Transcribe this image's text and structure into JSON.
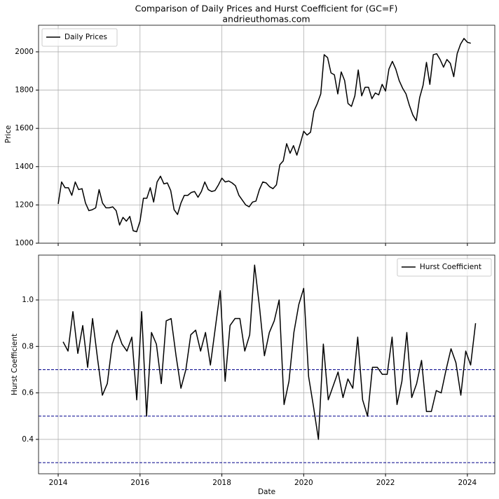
{
  "title": "Comparison of Daily Prices and Hurst Coefficient for (GC=F)",
  "subtitle": "andrieuthomas.com",
  "chart_data": [
    {
      "type": "line",
      "ylabel": "Price",
      "legend": "upper left",
      "grid": true,
      "xlim": [
        2013.52,
        2024.67
      ],
      "xticks": [
        2014,
        2016,
        2018,
        2020,
        2022,
        2024
      ],
      "ylim": [
        1000,
        2139
      ],
      "yticks": [
        1000,
        1200,
        1400,
        1600,
        1800,
        2000
      ],
      "x": [
        2014.0,
        2014.083,
        2014.167,
        2014.25,
        2014.333,
        2014.417,
        2014.5,
        2014.583,
        2014.667,
        2014.75,
        2014.833,
        2014.917,
        2015.0,
        2015.083,
        2015.167,
        2015.25,
        2015.333,
        2015.417,
        2015.5,
        2015.583,
        2015.667,
        2015.75,
        2015.833,
        2015.917,
        2016.0,
        2016.083,
        2016.167,
        2016.25,
        2016.333,
        2016.417,
        2016.5,
        2016.583,
        2016.667,
        2016.75,
        2016.833,
        2016.917,
        2017.0,
        2017.083,
        2017.167,
        2017.25,
        2017.333,
        2017.417,
        2017.5,
        2017.583,
        2017.667,
        2017.75,
        2017.833,
        2017.917,
        2018.0,
        2018.083,
        2018.167,
        2018.25,
        2018.333,
        2018.417,
        2018.5,
        2018.583,
        2018.667,
        2018.75,
        2018.833,
        2018.917,
        2019.0,
        2019.083,
        2019.167,
        2019.25,
        2019.333,
        2019.417,
        2019.5,
        2019.583,
        2019.667,
        2019.75,
        2019.833,
        2019.917,
        2020.0,
        2020.083,
        2020.167,
        2020.25,
        2020.333,
        2020.417,
        2020.5,
        2020.583,
        2020.667,
        2020.75,
        2020.833,
        2020.917,
        2021.0,
        2021.083,
        2021.167,
        2021.25,
        2021.333,
        2021.417,
        2021.5,
        2021.583,
        2021.667,
        2021.75,
        2021.833,
        2021.917,
        2022.0,
        2022.083,
        2022.167,
        2022.25,
        2022.333,
        2022.417,
        2022.5,
        2022.583,
        2022.667,
        2022.75,
        2022.833,
        2022.917,
        2023.0,
        2023.083,
        2023.167,
        2023.25,
        2023.333,
        2023.417,
        2023.5,
        2023.583,
        2023.667,
        2023.75,
        2023.833,
        2023.917,
        2024.0,
        2024.083
      ],
      "series": [
        {
          "name": "Daily Prices",
          "color": "#000000",
          "values": [
            1205,
            1320,
            1290,
            1290,
            1250,
            1320,
            1280,
            1285,
            1210,
            1170,
            1175,
            1185,
            1280,
            1210,
            1185,
            1185,
            1190,
            1170,
            1095,
            1135,
            1115,
            1140,
            1065,
            1060,
            1115,
            1235,
            1235,
            1290,
            1215,
            1320,
            1350,
            1310,
            1315,
            1275,
            1175,
            1150,
            1210,
            1250,
            1250,
            1265,
            1270,
            1240,
            1270,
            1320,
            1280,
            1270,
            1275,
            1305,
            1340,
            1320,
            1325,
            1315,
            1300,
            1250,
            1225,
            1200,
            1190,
            1215,
            1220,
            1280,
            1320,
            1315,
            1295,
            1285,
            1305,
            1410,
            1430,
            1520,
            1470,
            1510,
            1460,
            1520,
            1585,
            1565,
            1580,
            1690,
            1730,
            1780,
            1985,
            1970,
            1890,
            1880,
            1780,
            1895,
            1850,
            1730,
            1715,
            1770,
            1905,
            1770,
            1815,
            1815,
            1755,
            1785,
            1775,
            1830,
            1795,
            1910,
            1950,
            1910,
            1850,
            1810,
            1780,
            1720,
            1670,
            1640,
            1760,
            1825,
            1945,
            1830,
            1985,
            1990,
            1960,
            1920,
            1960,
            1940,
            1870,
            1990,
            2040,
            2070,
            2050,
            2045
          ]
        }
      ]
    },
    {
      "type": "line",
      "xlabel": "Date",
      "ylabel": "Hurst Coefficient",
      "legend": "upper right",
      "grid": true,
      "xlim": [
        2013.52,
        2024.67
      ],
      "xticks": [
        2014,
        2016,
        2018,
        2020,
        2022,
        2024
      ],
      "ylim": [
        0.252,
        1.193
      ],
      "yticks": [
        0.4,
        0.6,
        0.8,
        {
          "value": 1,
          "label": "1.0"
        }
      ],
      "hlines": [
        0.3,
        0.5,
        0.7
      ],
      "hline_color": "#00008b",
      "x": [
        2014.12,
        2014.24,
        2014.36,
        2014.48,
        2014.6,
        2014.72,
        2014.84,
        2014.96,
        2015.08,
        2015.2,
        2015.32,
        2015.44,
        2015.56,
        2015.68,
        2015.8,
        2015.92,
        2016.04,
        2016.16,
        2016.28,
        2016.4,
        2016.52,
        2016.64,
        2016.76,
        2016.88,
        2017.0,
        2017.12,
        2017.24,
        2017.36,
        2017.48,
        2017.6,
        2017.72,
        2017.84,
        2017.96,
        2018.08,
        2018.2,
        2018.32,
        2018.44,
        2018.56,
        2018.68,
        2018.8,
        2018.92,
        2019.04,
        2019.16,
        2019.28,
        2019.4,
        2019.52,
        2019.64,
        2019.76,
        2019.88,
        2020.0,
        2020.12,
        2020.24,
        2020.36,
        2020.48,
        2020.6,
        2020.72,
        2020.84,
        2020.96,
        2021.08,
        2021.2,
        2021.32,
        2021.44,
        2021.56,
        2021.68,
        2021.8,
        2021.92,
        2022.04,
        2022.16,
        2022.28,
        2022.4,
        2022.52,
        2022.64,
        2022.76,
        2022.88,
        2023.0,
        2023.12,
        2023.24,
        2023.36,
        2023.48,
        2023.6,
        2023.72,
        2023.84,
        2023.96,
        2024.08,
        2024.2
      ],
      "series": [
        {
          "name": "Hurst Coefficient",
          "color": "#000000",
          "values": [
            0.82,
            0.78,
            0.95,
            0.77,
            0.89,
            0.71,
            0.92,
            0.75,
            0.59,
            0.64,
            0.81,
            0.87,
            0.81,
            0.78,
            0.84,
            0.57,
            0.95,
            0.5,
            0.86,
            0.81,
            0.64,
            0.91,
            0.92,
            0.76,
            0.62,
            0.7,
            0.85,
            0.87,
            0.78,
            0.86,
            0.72,
            0.88,
            1.04,
            0.65,
            0.89,
            0.92,
            0.92,
            0.78,
            0.85,
            1.15,
            0.97,
            0.76,
            0.86,
            0.91,
            1.0,
            0.55,
            0.65,
            0.86,
            0.98,
            1.05,
            0.67,
            0.54,
            0.4,
            0.81,
            0.57,
            0.63,
            0.69,
            0.58,
            0.66,
            0.62,
            0.84,
            0.57,
            0.5,
            0.71,
            0.71,
            0.68,
            0.68,
            0.84,
            0.55,
            0.65,
            0.86,
            0.58,
            0.64,
            0.74,
            0.52,
            0.52,
            0.61,
            0.6,
            0.7,
            0.79,
            0.73,
            0.59,
            0.78,
            0.72,
            0.9
          ]
        }
      ]
    }
  ]
}
